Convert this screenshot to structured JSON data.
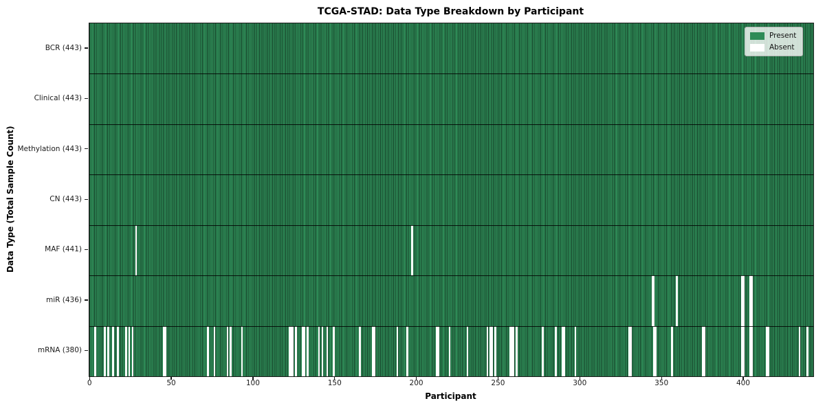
{
  "chart_data": {
    "type": "heatmap",
    "title": "TCGA-STAD: Data Type Breakdown by Participant",
    "xlabel": "Participant",
    "ylabel": "Data Type (Total Sample Count)",
    "n_participants": 443,
    "xlim": [
      0,
      443
    ],
    "x_ticks": [
      0,
      50,
      100,
      150,
      200,
      250,
      300,
      350,
      400
    ],
    "grid": false,
    "legend_position": "upper right",
    "colors": {
      "present": "#2e8b57",
      "absent": "#ffffff",
      "edge": "rgba(0,0,0,0.55)"
    },
    "categories": [
      "BCR (443)",
      "Clinical (443)",
      "Methylation (443)",
      "CN (443)",
      "MAF (441)",
      "miR (436)",
      "mRNA (380)"
    ],
    "rows": [
      {
        "label": "BCR (443)",
        "data_type": "BCR",
        "present_count": 443,
        "absent_count": 0,
        "absent": []
      },
      {
        "label": "Clinical (443)",
        "data_type": "Clinical",
        "present_count": 443,
        "absent_count": 0,
        "absent": []
      },
      {
        "label": "Methylation (443)",
        "data_type": "Methylation",
        "present_count": 443,
        "absent_count": 0,
        "absent": []
      },
      {
        "label": "CN (443)",
        "data_type": "CN",
        "present_count": 443,
        "absent_count": 0,
        "absent": []
      },
      {
        "label": "MAF (441)",
        "data_type": "MAF",
        "present_count": 441,
        "absent_count": 2,
        "absent": [
          28,
          197
        ]
      },
      {
        "label": "miR (436)",
        "data_type": "miR",
        "present_count": 436,
        "absent_count": 7,
        "absent": [
          344,
          345,
          359,
          399,
          400,
          404,
          405
        ]
      },
      {
        "label": "mRNA (380)",
        "data_type": "mRNA",
        "present_count": 380,
        "absent_count": 63,
        "absent": [
          3,
          9,
          11,
          14,
          17,
          22,
          24,
          26,
          45,
          46,
          72,
          76,
          84,
          86,
          93,
          122,
          123,
          124,
          126,
          130,
          131,
          133,
          140,
          142,
          145,
          149,
          165,
          173,
          174,
          188,
          194,
          212,
          213,
          220,
          231,
          243,
          245,
          246,
          248,
          257,
          258,
          259,
          261,
          277,
          285,
          289,
          290,
          297,
          330,
          331,
          345,
          346,
          356,
          375,
          376,
          399,
          400,
          404,
          405,
          414,
          415,
          434,
          439
        ]
      }
    ]
  },
  "legend": {
    "items": [
      {
        "label": "Present",
        "color": "#2e8b57"
      },
      {
        "label": "Absent",
        "color": "#ffffff"
      }
    ]
  }
}
